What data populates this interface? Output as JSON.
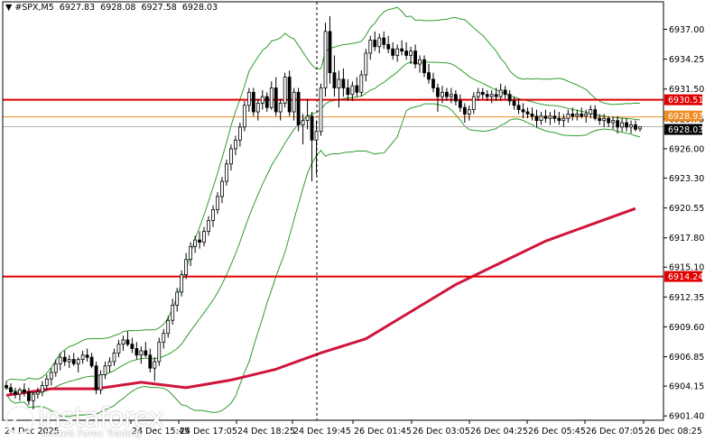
{
  "header": {
    "symbol": "#SPX,M5",
    "open": "6927.83",
    "high": "6928.08",
    "low": "6927.58",
    "close": "6928.03"
  },
  "logo": {
    "text": "instaforex",
    "tagline": "Instant Forex Trading"
  },
  "colors": {
    "background": "#ffffff",
    "candle": "#000000",
    "bollinger": "#2e9d2e",
    "moving_average": "#d0143c",
    "level_line": "#e00000",
    "bid_line": "#b0b0b0",
    "ask_line": "#ee8b22",
    "axis": "#000000"
  },
  "chart_data": {
    "type": "candlestick",
    "title": "",
    "ylim": [
      6901.0,
      6939.2
    ],
    "y_ticks": [
      "6937.00",
      "6934.25",
      "6931.50",
      "6928.75",
      "6926.00",
      "6923.30",
      "6920.55",
      "6917.80",
      "6915.10",
      "6912.35",
      "6909.60",
      "6906.85",
      "6904.15",
      "6901.40"
    ],
    "x_ticks": [
      "24 Dec 15:45",
      "24 Dec 17:05",
      "24 Dec 18:25",
      "24 Dec 19:45",
      "26 Dec 01:45",
      "26 Dec 03:05",
      "26 Dec 04:25",
      "26 Dec 05:45",
      "26 Dec 07:05",
      "26 Dec 08:25"
    ],
    "x_tick_first_partial": "24 Dec 2025",
    "session_separator_after": "24 Dec 19:45",
    "levels": [
      {
        "label": "6930.51",
        "value": 6930.51,
        "kind": "resistance"
      },
      {
        "label": "6914.24",
        "value": 6914.24,
        "kind": "support"
      }
    ],
    "price_markers": [
      {
        "label": "6928.93",
        "value": 6928.93,
        "kind": "ask"
      },
      {
        "label": "6928.03",
        "value": 6928.03,
        "kind": "bid"
      }
    ],
    "moving_average": {
      "x": [
        0,
        50,
        100,
        150,
        200,
        250,
        300,
        350,
        400,
        450,
        500,
        550,
        600,
        650,
        700
      ],
      "y": [
        6903.3,
        6903.9,
        6903.9,
        6904.5,
        6904.0,
        6904.7,
        6905.7,
        6907.2,
        6908.5,
        6911.0,
        6913.5,
        6915.5,
        6917.5,
        6919.0,
        6920.5
      ]
    },
    "candles": [
      {
        "t": 0,
        "o": 6904.2,
        "h": 6904.6,
        "l": 6903.8,
        "c": 6904.0
      },
      {
        "t": 5,
        "o": 6904.0,
        "h": 6904.4,
        "l": 6903.4,
        "c": 6903.6
      },
      {
        "t": 10,
        "o": 6903.6,
        "h": 6904.0,
        "l": 6903.0,
        "c": 6903.4
      },
      {
        "t": 15,
        "o": 6903.4,
        "h": 6904.0,
        "l": 6902.8,
        "c": 6903.8
      },
      {
        "t": 20,
        "o": 6903.8,
        "h": 6904.4,
        "l": 6903.2,
        "c": 6903.6
      },
      {
        "t": 25,
        "o": 6903.6,
        "h": 6904.0,
        "l": 6902.4,
        "c": 6902.8
      },
      {
        "t": 30,
        "o": 6902.8,
        "h": 6903.6,
        "l": 6902.0,
        "c": 6903.4
      },
      {
        "t": 35,
        "o": 6903.4,
        "h": 6904.0,
        "l": 6903.0,
        "c": 6903.6
      },
      {
        "t": 40,
        "o": 6903.6,
        "h": 6904.6,
        "l": 6903.2,
        "c": 6904.2
      },
      {
        "t": 45,
        "o": 6904.2,
        "h": 6905.2,
        "l": 6903.8,
        "c": 6904.8
      },
      {
        "t": 50,
        "o": 6904.8,
        "h": 6905.8,
        "l": 6904.2,
        "c": 6905.4
      },
      {
        "t": 55,
        "o": 6905.4,
        "h": 6906.6,
        "l": 6905.0,
        "c": 6906.2
      },
      {
        "t": 60,
        "o": 6906.2,
        "h": 6907.2,
        "l": 6905.6,
        "c": 6906.8
      },
      {
        "t": 65,
        "o": 6906.8,
        "h": 6907.4,
        "l": 6906.0,
        "c": 6906.4
      },
      {
        "t": 70,
        "o": 6906.4,
        "h": 6907.0,
        "l": 6905.8,
        "c": 6906.6
      },
      {
        "t": 75,
        "o": 6906.6,
        "h": 6907.2,
        "l": 6906.0,
        "c": 6906.2
      },
      {
        "t": 80,
        "o": 6906.2,
        "h": 6906.8,
        "l": 6905.4,
        "c": 6906.6
      },
      {
        "t": 85,
        "o": 6906.6,
        "h": 6907.4,
        "l": 6906.2,
        "c": 6907.0
      },
      {
        "t": 90,
        "o": 6907.0,
        "h": 6907.6,
        "l": 6906.4,
        "c": 6906.8
      },
      {
        "t": 95,
        "o": 6906.8,
        "h": 6907.2,
        "l": 6905.8,
        "c": 6906.0
      },
      {
        "t": 100,
        "o": 6906.0,
        "h": 6906.4,
        "l": 6903.4,
        "c": 6903.8
      },
      {
        "t": 105,
        "o": 6903.8,
        "h": 6905.6,
        "l": 6903.4,
        "c": 6905.2
      },
      {
        "t": 110,
        "o": 6905.2,
        "h": 6906.4,
        "l": 6904.8,
        "c": 6906.0
      },
      {
        "t": 115,
        "o": 6906.0,
        "h": 6906.8,
        "l": 6905.4,
        "c": 6906.4
      },
      {
        "t": 120,
        "o": 6906.4,
        "h": 6907.6,
        "l": 6906.0,
        "c": 6907.2
      },
      {
        "t": 125,
        "o": 6907.2,
        "h": 6908.4,
        "l": 6906.8,
        "c": 6908.0
      },
      {
        "t": 130,
        "o": 6908.0,
        "h": 6908.8,
        "l": 6907.4,
        "c": 6908.4
      },
      {
        "t": 135,
        "o": 6908.4,
        "h": 6909.2,
        "l": 6907.8,
        "c": 6908.0
      },
      {
        "t": 140,
        "o": 6908.0,
        "h": 6908.6,
        "l": 6907.2,
        "c": 6907.6
      },
      {
        "t": 145,
        "o": 6907.6,
        "h": 6908.2,
        "l": 6906.6,
        "c": 6907.0
      },
      {
        "t": 150,
        "o": 6907.0,
        "h": 6907.8,
        "l": 6906.2,
        "c": 6907.4
      },
      {
        "t": 155,
        "o": 6907.4,
        "h": 6908.2,
        "l": 6906.8,
        "c": 6907.0
      },
      {
        "t": 160,
        "o": 6907.0,
        "h": 6907.6,
        "l": 6905.4,
        "c": 6905.8
      },
      {
        "t": 165,
        "o": 6905.8,
        "h": 6906.8,
        "l": 6904.6,
        "c": 6906.4
      },
      {
        "t": 170,
        "o": 6906.4,
        "h": 6908.6,
        "l": 6906.0,
        "c": 6908.2
      },
      {
        "t": 175,
        "o": 6908.2,
        "h": 6909.4,
        "l": 6907.6,
        "c": 6909.0
      },
      {
        "t": 180,
        "o": 6909.0,
        "h": 6910.6,
        "l": 6908.6,
        "c": 6910.2
      },
      {
        "t": 185,
        "o": 6910.2,
        "h": 6912.2,
        "l": 6909.8,
        "c": 6911.6
      },
      {
        "t": 190,
        "o": 6911.6,
        "h": 6913.2,
        "l": 6911.0,
        "c": 6912.8
      },
      {
        "t": 195,
        "o": 6912.8,
        "h": 6914.8,
        "l": 6912.4,
        "c": 6914.4
      },
      {
        "t": 200,
        "o": 6914.4,
        "h": 6916.4,
        "l": 6914.0,
        "c": 6915.8
      },
      {
        "t": 205,
        "o": 6915.8,
        "h": 6917.4,
        "l": 6915.2,
        "c": 6917.0
      },
      {
        "t": 210,
        "o": 6917.0,
        "h": 6918.0,
        "l": 6916.4,
        "c": 6917.6
      },
      {
        "t": 215,
        "o": 6917.6,
        "h": 6918.4,
        "l": 6916.8,
        "c": 6917.4
      },
      {
        "t": 220,
        "o": 6917.4,
        "h": 6918.8,
        "l": 6917.0,
        "c": 6918.4
      },
      {
        "t": 225,
        "o": 6918.4,
        "h": 6919.8,
        "l": 6918.0,
        "c": 6919.4
      },
      {
        "t": 230,
        "o": 6919.4,
        "h": 6920.8,
        "l": 6918.8,
        "c": 6920.4
      },
      {
        "t": 235,
        "o": 6920.4,
        "h": 6922.0,
        "l": 6920.0,
        "c": 6921.6
      },
      {
        "t": 240,
        "o": 6921.6,
        "h": 6923.4,
        "l": 6921.0,
        "c": 6923.0
      },
      {
        "t": 245,
        "o": 6923.0,
        "h": 6925.0,
        "l": 6922.6,
        "c": 6924.6
      },
      {
        "t": 250,
        "o": 6924.6,
        "h": 6926.4,
        "l": 6924.0,
        "c": 6926.0
      },
      {
        "t": 255,
        "o": 6926.0,
        "h": 6927.2,
        "l": 6925.4,
        "c": 6926.8
      },
      {
        "t": 260,
        "o": 6926.8,
        "h": 6928.4,
        "l": 6926.2,
        "c": 6928.0
      },
      {
        "t": 265,
        "o": 6928.0,
        "h": 6930.4,
        "l": 6927.6,
        "c": 6930.0
      },
      {
        "t": 270,
        "o": 6930.0,
        "h": 6931.6,
        "l": 6929.4,
        "c": 6931.2
      },
      {
        "t": 275,
        "o": 6931.2,
        "h": 6931.6,
        "l": 6929.0,
        "c": 6929.4
      },
      {
        "t": 280,
        "o": 6929.4,
        "h": 6930.6,
        "l": 6928.6,
        "c": 6930.2
      },
      {
        "t": 285,
        "o": 6930.2,
        "h": 6931.4,
        "l": 6929.6,
        "c": 6930.8
      },
      {
        "t": 290,
        "o": 6930.8,
        "h": 6931.2,
        "l": 6929.4,
        "c": 6929.8
      },
      {
        "t": 295,
        "o": 6929.8,
        "h": 6932.2,
        "l": 6929.6,
        "c": 6931.6
      },
      {
        "t": 300,
        "o": 6931.6,
        "h": 6932.6,
        "l": 6929.0,
        "c": 6929.4
      },
      {
        "t": 305,
        "o": 6929.4,
        "h": 6930.6,
        "l": 6928.6,
        "c": 6930.2
      },
      {
        "t": 310,
        "o": 6930.2,
        "h": 6933.0,
        "l": 6929.8,
        "c": 6932.6
      },
      {
        "t": 315,
        "o": 6932.6,
        "h": 6933.2,
        "l": 6929.0,
        "c": 6929.4
      },
      {
        "t": 320,
        "o": 6929.4,
        "h": 6931.6,
        "l": 6928.6,
        "c": 6931.2
      },
      {
        "t": 325,
        "o": 6931.2,
        "h": 6931.6,
        "l": 6927.6,
        "c": 6928.2
      },
      {
        "t": 330,
        "o": 6928.2,
        "h": 6929.2,
        "l": 6926.4,
        "c": 6928.6
      },
      {
        "t": 335,
        "o": 6928.6,
        "h": 6930.6,
        "l": 6927.8,
        "c": 6929.0
      },
      {
        "t": 340,
        "o": 6929.0,
        "h": 6929.4,
        "l": 6923.0,
        "c": 6926.8
      },
      {
        "t": 345,
        "o": 6926.8,
        "h": 6928.6,
        "l": 6923.6,
        "c": 6927.6
      },
      {
        "t": 350,
        "o": 6927.6,
        "h": 6932.0,
        "l": 6927.2,
        "c": 6931.6
      },
      {
        "t": 355,
        "o": 6931.6,
        "h": 6937.6,
        "l": 6930.8,
        "c": 6936.8
      },
      {
        "t": 360,
        "o": 6936.8,
        "h": 6938.2,
        "l": 6932.0,
        "c": 6933.0
      },
      {
        "t": 365,
        "o": 6933.0,
        "h": 6934.6,
        "l": 6930.8,
        "c": 6931.6
      },
      {
        "t": 370,
        "o": 6931.6,
        "h": 6933.2,
        "l": 6929.8,
        "c": 6932.4
      },
      {
        "t": 375,
        "o": 6932.4,
        "h": 6933.4,
        "l": 6930.8,
        "c": 6931.6
      },
      {
        "t": 380,
        "o": 6931.6,
        "h": 6932.4,
        "l": 6930.4,
        "c": 6931.0
      },
      {
        "t": 385,
        "o": 6931.0,
        "h": 6932.2,
        "l": 6930.4,
        "c": 6931.8
      },
      {
        "t": 390,
        "o": 6931.8,
        "h": 6932.6,
        "l": 6930.8,
        "c": 6931.2
      },
      {
        "t": 395,
        "o": 6931.2,
        "h": 6933.2,
        "l": 6930.8,
        "c": 6932.8
      },
      {
        "t": 400,
        "o": 6932.8,
        "h": 6935.2,
        "l": 6932.2,
        "c": 6934.8
      },
      {
        "t": 405,
        "o": 6934.8,
        "h": 6936.4,
        "l": 6934.2,
        "c": 6936.0
      },
      {
        "t": 410,
        "o": 6936.0,
        "h": 6936.8,
        "l": 6935.0,
        "c": 6935.4
      },
      {
        "t": 415,
        "o": 6935.4,
        "h": 6936.6,
        "l": 6934.8,
        "c": 6936.2
      },
      {
        "t": 420,
        "o": 6936.2,
        "h": 6936.8,
        "l": 6935.2,
        "c": 6935.6
      },
      {
        "t": 425,
        "o": 6935.6,
        "h": 6936.4,
        "l": 6934.8,
        "c": 6935.2
      },
      {
        "t": 430,
        "o": 6935.2,
        "h": 6935.8,
        "l": 6934.2,
        "c": 6934.6
      },
      {
        "t": 435,
        "o": 6934.6,
        "h": 6935.6,
        "l": 6934.0,
        "c": 6935.2
      },
      {
        "t": 440,
        "o": 6935.2,
        "h": 6936.0,
        "l": 6934.6,
        "c": 6935.0
      },
      {
        "t": 445,
        "o": 6935.0,
        "h": 6935.8,
        "l": 6934.2,
        "c": 6934.6
      },
      {
        "t": 450,
        "o": 6934.6,
        "h": 6935.4,
        "l": 6933.8,
        "c": 6935.0
      },
      {
        "t": 455,
        "o": 6935.0,
        "h": 6935.6,
        "l": 6933.4,
        "c": 6933.8
      },
      {
        "t": 460,
        "o": 6933.8,
        "h": 6934.6,
        "l": 6933.0,
        "c": 6934.2
      },
      {
        "t": 465,
        "o": 6934.2,
        "h": 6934.6,
        "l": 6932.6,
        "c": 6933.0
      },
      {
        "t": 470,
        "o": 6933.0,
        "h": 6933.8,
        "l": 6932.0,
        "c": 6932.4
      },
      {
        "t": 475,
        "o": 6932.4,
        "h": 6933.0,
        "l": 6931.2,
        "c": 6931.6
      },
      {
        "t": 480,
        "o": 6931.6,
        "h": 6932.0,
        "l": 6929.4,
        "c": 6930.8
      },
      {
        "t": 485,
        "o": 6930.8,
        "h": 6931.8,
        "l": 6930.2,
        "c": 6931.2
      },
      {
        "t": 490,
        "o": 6931.2,
        "h": 6931.6,
        "l": 6930.4,
        "c": 6930.8
      },
      {
        "t": 495,
        "o": 6930.8,
        "h": 6931.6,
        "l": 6930.2,
        "c": 6931.0
      },
      {
        "t": 500,
        "o": 6931.0,
        "h": 6931.4,
        "l": 6930.0,
        "c": 6930.4
      },
      {
        "t": 505,
        "o": 6930.4,
        "h": 6931.0,
        "l": 6929.4,
        "c": 6929.8
      },
      {
        "t": 510,
        "o": 6929.8,
        "h": 6930.2,
        "l": 6928.4,
        "c": 6929.2
      },
      {
        "t": 515,
        "o": 6929.2,
        "h": 6930.0,
        "l": 6928.6,
        "c": 6929.6
      },
      {
        "t": 520,
        "o": 6929.6,
        "h": 6931.2,
        "l": 6929.2,
        "c": 6930.8
      },
      {
        "t": 525,
        "o": 6930.8,
        "h": 6931.6,
        "l": 6930.4,
        "c": 6931.2
      },
      {
        "t": 530,
        "o": 6931.2,
        "h": 6931.6,
        "l": 6930.6,
        "c": 6931.0
      },
      {
        "t": 535,
        "o": 6931.0,
        "h": 6931.4,
        "l": 6930.4,
        "c": 6930.8
      },
      {
        "t": 540,
        "o": 6930.8,
        "h": 6931.4,
        "l": 6930.2,
        "c": 6931.0
      },
      {
        "t": 545,
        "o": 6931.0,
        "h": 6931.6,
        "l": 6930.4,
        "c": 6930.8
      },
      {
        "t": 550,
        "o": 6930.8,
        "h": 6932.0,
        "l": 6930.4,
        "c": 6931.4
      },
      {
        "t": 555,
        "o": 6931.4,
        "h": 6931.8,
        "l": 6930.6,
        "c": 6931.0
      },
      {
        "t": 560,
        "o": 6931.0,
        "h": 6931.4,
        "l": 6930.0,
        "c": 6930.4
      },
      {
        "t": 565,
        "o": 6930.4,
        "h": 6930.8,
        "l": 6929.6,
        "c": 6930.0
      },
      {
        "t": 570,
        "o": 6930.0,
        "h": 6930.6,
        "l": 6929.2,
        "c": 6929.6
      },
      {
        "t": 575,
        "o": 6929.6,
        "h": 6930.2,
        "l": 6928.8,
        "c": 6929.4
      },
      {
        "t": 580,
        "o": 6929.4,
        "h": 6929.8,
        "l": 6928.8,
        "c": 6929.2
      },
      {
        "t": 585,
        "o": 6929.2,
        "h": 6929.8,
        "l": 6928.6,
        "c": 6929.0
      },
      {
        "t": 590,
        "o": 6929.0,
        "h": 6929.6,
        "l": 6928.0,
        "c": 6928.6
      },
      {
        "t": 595,
        "o": 6928.6,
        "h": 6929.4,
        "l": 6928.2,
        "c": 6929.0
      },
      {
        "t": 600,
        "o": 6929.0,
        "h": 6929.6,
        "l": 6928.4,
        "c": 6928.8
      },
      {
        "t": 605,
        "o": 6928.8,
        "h": 6929.4,
        "l": 6928.2,
        "c": 6929.0
      },
      {
        "t": 610,
        "o": 6929.0,
        "h": 6929.6,
        "l": 6928.4,
        "c": 6928.8
      },
      {
        "t": 615,
        "o": 6928.8,
        "h": 6929.4,
        "l": 6928.2,
        "c": 6928.6
      },
      {
        "t": 620,
        "o": 6928.6,
        "h": 6929.2,
        "l": 6928.0,
        "c": 6928.8
      },
      {
        "t": 625,
        "o": 6928.8,
        "h": 6929.6,
        "l": 6928.4,
        "c": 6929.2
      },
      {
        "t": 630,
        "o": 6929.2,
        "h": 6929.8,
        "l": 6928.6,
        "c": 6929.0
      },
      {
        "t": 635,
        "o": 6929.0,
        "h": 6929.6,
        "l": 6928.6,
        "c": 6929.2
      },
      {
        "t": 640,
        "o": 6929.2,
        "h": 6929.8,
        "l": 6928.8,
        "c": 6929.0
      },
      {
        "t": 645,
        "o": 6929.0,
        "h": 6929.6,
        "l": 6928.4,
        "c": 6929.2
      },
      {
        "t": 650,
        "o": 6929.2,
        "h": 6930.0,
        "l": 6928.8,
        "c": 6929.6
      },
      {
        "t": 655,
        "o": 6929.6,
        "h": 6930.0,
        "l": 6928.6,
        "c": 6928.8
      },
      {
        "t": 660,
        "o": 6928.8,
        "h": 6929.2,
        "l": 6928.2,
        "c": 6928.6
      },
      {
        "t": 665,
        "o": 6928.6,
        "h": 6929.2,
        "l": 6928.0,
        "c": 6928.8
      },
      {
        "t": 670,
        "o": 6928.8,
        "h": 6929.0,
        "l": 6928.0,
        "c": 6928.4
      },
      {
        "t": 675,
        "o": 6928.4,
        "h": 6929.0,
        "l": 6927.8,
        "c": 6928.6
      },
      {
        "t": 680,
        "o": 6928.6,
        "h": 6929.0,
        "l": 6927.4,
        "c": 6928.0
      },
      {
        "t": 685,
        "o": 6928.0,
        "h": 6928.8,
        "l": 6927.6,
        "c": 6928.4
      },
      {
        "t": 690,
        "o": 6928.4,
        "h": 6928.8,
        "l": 6927.6,
        "c": 6928.0
      },
      {
        "t": 695,
        "o": 6928.0,
        "h": 6928.6,
        "l": 6927.4,
        "c": 6928.2
      },
      {
        "t": 700,
        "o": 6928.2,
        "h": 6928.6,
        "l": 6927.6,
        "c": 6927.8
      },
      {
        "t": 705,
        "o": 6927.83,
        "h": 6928.08,
        "l": 6927.58,
        "c": 6928.03
      }
    ]
  }
}
